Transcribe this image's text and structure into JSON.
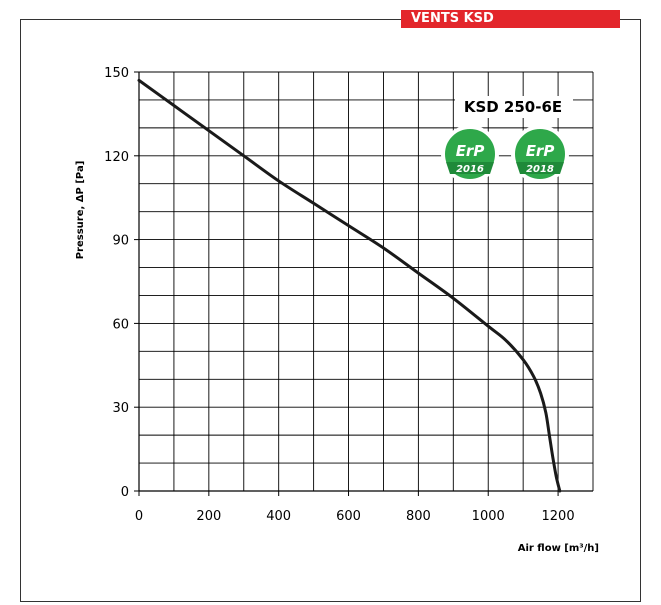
{
  "brand": "VENTS KSD",
  "model": "KSD 250-6E",
  "badges": [
    {
      "label": "ErP",
      "year": "2016"
    },
    {
      "label": "ErP",
      "year": "2018"
    }
  ],
  "colors": {
    "brand_red": "#e3262b",
    "badge_green": "#2ea84a",
    "curve": "#1a1a1a",
    "grid": "#000000"
  },
  "chart_data": {
    "type": "line",
    "title": "",
    "xlabel": "Air flow [m³/h]",
    "ylabel": "Pressure, ΔP [Pa]",
    "xlim": [
      0,
      1300
    ],
    "ylim": [
      0,
      150
    ],
    "x_ticks": [
      0,
      200,
      400,
      600,
      800,
      1000,
      1200
    ],
    "y_ticks": [
      0,
      30,
      60,
      90,
      120,
      150
    ],
    "grid": true,
    "series": [
      {
        "x": [
          0,
          100,
          200,
          300,
          400,
          500,
          600,
          700,
          800,
          900,
          1000,
          1050,
          1100,
          1130,
          1150,
          1165,
          1175,
          1185,
          1195,
          1205
        ],
        "y": [
          147,
          138,
          129,
          120,
          111,
          103,
          95,
          87,
          78,
          69,
          59,
          54,
          47,
          41,
          35,
          28,
          20,
          12,
          5,
          0
        ]
      }
    ]
  }
}
